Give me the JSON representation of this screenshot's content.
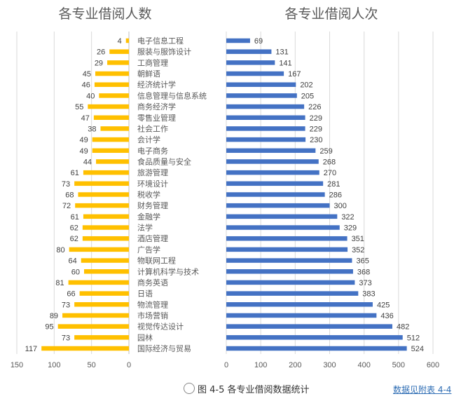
{
  "chart_data": [
    {
      "type": "bar",
      "orientation": "horizontal",
      "title": "各专业借阅人数",
      "direction": "right-to-left",
      "xlim": [
        0,
        150
      ],
      "xticks": [
        "150",
        "100",
        "50",
        "0"
      ],
      "grid": true,
      "bar_color": "#FFC000",
      "categories": [
        "电子信息工程",
        "服装与服饰设计",
        "工商管理",
        "朝鲜语",
        "经济统计学",
        "信息管理与信息系统",
        "商务经济学",
        "零售业管理",
        "社会工作",
        "会计学",
        "电子商务",
        "食品质量与安全",
        "旅游管理",
        "环境设计",
        "税收学",
        "财务管理",
        "金融学",
        "法学",
        "酒店管理",
        "广告学",
        "物联网工程",
        "计算机科学与技术",
        "商务英语",
        "日语",
        "物流管理",
        "市场营销",
        "视觉传达设计",
        "园林",
        "国际经济与贸易"
      ],
      "values": [
        4,
        26,
        29,
        45,
        46,
        40,
        55,
        47,
        38,
        49,
        49,
        44,
        61,
        73,
        68,
        72,
        61,
        62,
        62,
        80,
        64,
        60,
        81,
        66,
        73,
        89,
        95,
        73,
        117
      ]
    },
    {
      "type": "bar",
      "orientation": "horizontal",
      "title": "各专业借阅人次",
      "direction": "left-to-right",
      "xlim": [
        0,
        600
      ],
      "xticks": [
        "0",
        "100",
        "200",
        "300",
        "400",
        "500",
        "600"
      ],
      "grid": true,
      "bar_color": "#4472C4",
      "categories": [
        "电子信息工程",
        "服装与服饰设计",
        "工商管理",
        "朝鲜语",
        "经济统计学",
        "信息管理与信息系统",
        "商务经济学",
        "零售业管理",
        "社会工作",
        "会计学",
        "电子商务",
        "食品质量与安全",
        "旅游管理",
        "环境设计",
        "税收学",
        "财务管理",
        "金融学",
        "法学",
        "酒店管理",
        "广告学",
        "物联网工程",
        "计算机科学与技术",
        "商务英语",
        "日语",
        "物流管理",
        "市场营销",
        "视觉传达设计",
        "园林",
        "国际经济与贸易"
      ],
      "values": [
        69,
        131,
        141,
        167,
        202,
        205,
        226,
        229,
        229,
        230,
        259,
        268,
        270,
        281,
        286,
        300,
        322,
        329,
        351,
        352,
        365,
        368,
        373,
        383,
        425,
        436,
        482,
        512,
        524
      ]
    }
  ],
  "footer": {
    "caption": "图 4-5 各专业借阅数据统计",
    "link": "数据见附表 4-4"
  }
}
